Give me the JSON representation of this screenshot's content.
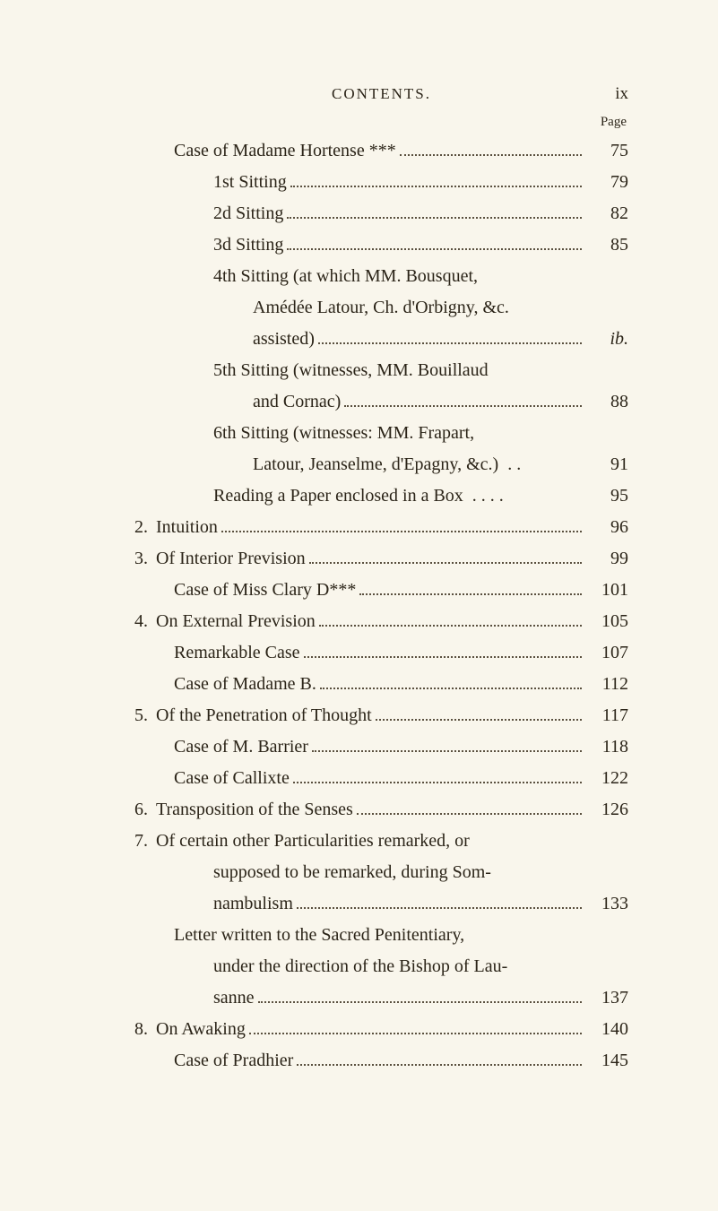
{
  "header": {
    "running_title": "CONTENTS.",
    "page_roman": "ix",
    "page_label": "Page"
  },
  "style": {
    "background_color": "#f9f6ec",
    "text_color": "#2b2418",
    "leader_color": "#5a503f",
    "body_font_size_pt": 15,
    "header_font_size_pt": 13,
    "font_family": "Georgia serif"
  },
  "entries": [
    {
      "indent": 1,
      "label": "Case of Madame Hortense ***",
      "page": "75",
      "leader": true
    },
    {
      "indent": 2,
      "label": "1st Sitting",
      "page": "79",
      "leader": true
    },
    {
      "indent": 2,
      "label": "2d Sitting",
      "page": "82",
      "leader": true
    },
    {
      "indent": 2,
      "label": "3d Sitting",
      "page": "85",
      "leader": true
    },
    {
      "indent": 2,
      "label": "4th Sitting (at which MM. Bousquet,",
      "leader": false,
      "continuation": true
    },
    {
      "indent": 3,
      "label": "Amédée Latour, Ch. d'Orbigny, &c.",
      "leader": false,
      "continuation": true
    },
    {
      "indent": 3,
      "label": "assisted)",
      "page": "ib.",
      "page_italic": true,
      "leader": true
    },
    {
      "indent": 2,
      "label": "5th Sitting (witnesses, MM. Bouillaud",
      "leader": false,
      "continuation": true
    },
    {
      "indent": 3,
      "label": "and Cornac)",
      "page": "88",
      "leader": true
    },
    {
      "indent": 2,
      "label": "6th Sitting (witnesses: MM. Frapart,",
      "leader": false,
      "continuation": true
    },
    {
      "indent": 3,
      "label": "Latour, Jeanselme, d'Epagny, &c.)  . .",
      "page": "91",
      "leader": false
    },
    {
      "indent": 2,
      "label": "Reading a Paper enclosed in a Box  . . . .",
      "page": "95",
      "leader": false
    },
    {
      "indent": 0,
      "num": "2.",
      "label": "Intuition",
      "page": "96",
      "leader": true
    },
    {
      "indent": 0,
      "num": "3.",
      "label": "Of Interior Prevision",
      "page": "99",
      "leader": true
    },
    {
      "indent": 1,
      "label": "Case of Miss Clary D***",
      "page": "101",
      "leader": true
    },
    {
      "indent": 0,
      "num": "4.",
      "label": "On External Prevision",
      "page": "105",
      "leader": true
    },
    {
      "indent": 1,
      "label": "Remarkable Case",
      "page": "107",
      "leader": true
    },
    {
      "indent": 1,
      "label": "Case of Madame B.",
      "page": "112",
      "leader": true
    },
    {
      "indent": 0,
      "num": "5.",
      "label": "Of the Penetration of Thought",
      "page": "117",
      "leader": true
    },
    {
      "indent": 1,
      "label": "Case of M. Barrier",
      "page": "118",
      "leader": true
    },
    {
      "indent": 1,
      "label": "Case of Callixte",
      "page": "122",
      "leader": true
    },
    {
      "indent": 0,
      "num": "6.",
      "label": "Transposition of the Senses",
      "page": "126",
      "leader": true
    },
    {
      "indent": 0,
      "num": "7.",
      "label": "Of certain other Particularities remarked, or",
      "leader": false,
      "continuation": true
    },
    {
      "indent": 2,
      "label": "supposed to be remarked, during Som-",
      "leader": false,
      "continuation": true
    },
    {
      "indent": 2,
      "label": "nambulism",
      "page": "133",
      "leader": true
    },
    {
      "indent": 1,
      "label": "Letter written to the Sacred Penitentiary,",
      "leader": false,
      "continuation": true
    },
    {
      "indent": 2,
      "label": "under the direction of the Bishop of Lau-",
      "leader": false,
      "continuation": true
    },
    {
      "indent": 2,
      "label": "sanne",
      "page": "137",
      "leader": true
    },
    {
      "indent": 0,
      "num": "8.",
      "label": "On Awaking",
      "page": "140",
      "leader": true
    },
    {
      "indent": 1,
      "label": "Case of Pradhier",
      "page": "145",
      "leader": true
    }
  ]
}
